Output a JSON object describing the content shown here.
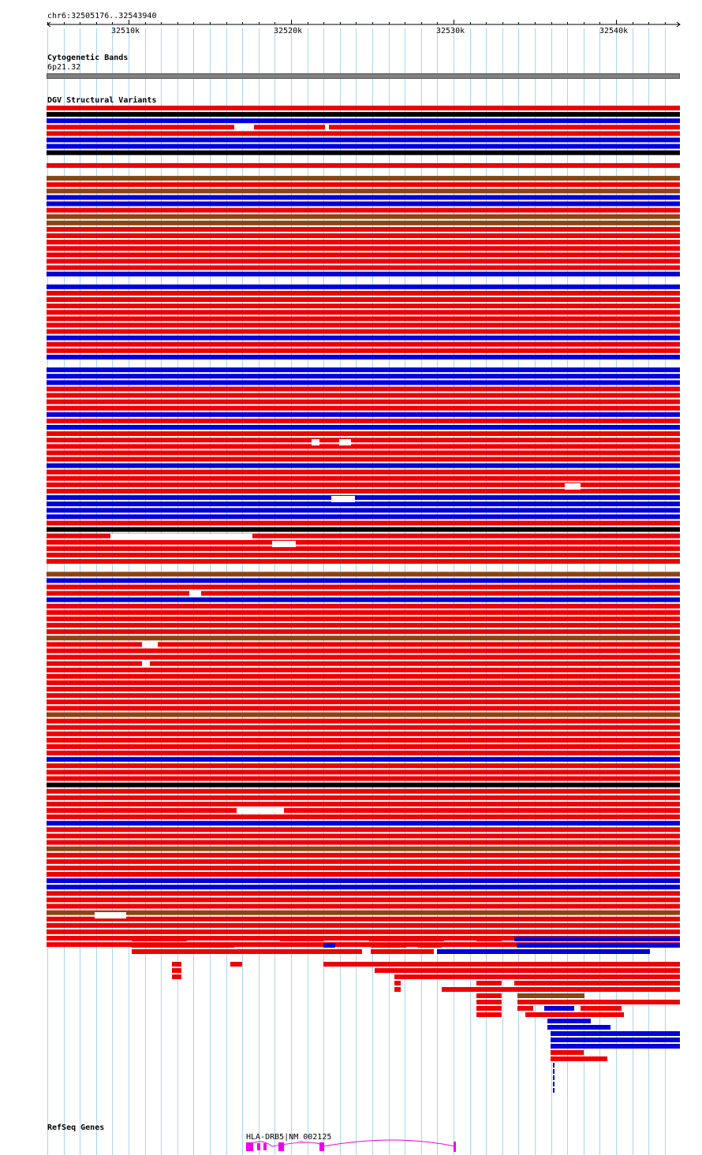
{
  "ruler": {
    "position": "chr6:32505176..32543940",
    "ticks": [
      "32510k",
      "32520k",
      "32530k",
      "32540k"
    ]
  },
  "cyto": {
    "title": "Cytogenetic Bands",
    "band": "6p21.32"
  },
  "dgv": {
    "title": "DGV Structural Variants"
  },
  "refseq": {
    "title": "RefSeq Genes",
    "gene_label": "HLA-DRB5|NM_002125"
  },
  "colors": {
    "red": "#ee0000",
    "blue": "#0000dd",
    "brown": "#8b4513",
    "black": "#000000",
    "gene": "#ee00ee",
    "grid": "#aad4ee",
    "cyto": "#808080"
  }
}
